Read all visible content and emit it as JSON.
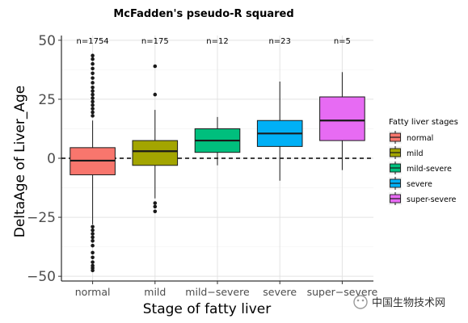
{
  "chart_data": {
    "type": "box",
    "title": "McFadden's pseudo-R squared",
    "xlabel": "Stage of fatty liver",
    "ylabel": "DeltaAge of Liver_Age",
    "ylim": [
      -52,
      52
    ],
    "yticks": [
      -50,
      -25,
      0,
      25,
      50
    ],
    "y_tick_labels": [
      "−50",
      "−25",
      "0",
      "25",
      "50"
    ],
    "reference_line": {
      "y": 0,
      "style": "dashed"
    },
    "grid": true,
    "legend": {
      "title": "Fatty liver stages",
      "placement": "right"
    },
    "categories": [
      "normal",
      "mild",
      "mild−severe",
      "severe",
      "super−severe"
    ],
    "series": [
      {
        "name": "normal",
        "color": "#F8766D",
        "count_label": "n=1754",
        "whisker_low": -28,
        "q1": -7,
        "median": -1,
        "q3": 4.5,
        "whisker_high": 16,
        "outliers": [
          43.5,
          42,
          40,
          38,
          36,
          34,
          32,
          30,
          28.5,
          27,
          25.5,
          24,
          22.5,
          21,
          19.5,
          18,
          -29,
          -30.5,
          -32,
          -33.5,
          -35,
          -37,
          -40,
          -42,
          -44,
          -45.5,
          -46.5,
          -47.5
        ]
      },
      {
        "name": "mild",
        "color": "#A3A500",
        "count_label": "n=175",
        "whisker_low": -17,
        "q1": -3,
        "median": 3,
        "q3": 7.5,
        "whisker_high": 20.5,
        "outliers": [
          39,
          27,
          -19,
          -20.5,
          -22.5
        ]
      },
      {
        "name": "mild-severe",
        "color": "#00BF7D",
        "count_label": "n=12",
        "whisker_low": -3,
        "q1": 2.5,
        "median": 7.5,
        "q3": 12.5,
        "whisker_high": 17.5,
        "outliers": []
      },
      {
        "name": "severe",
        "color": "#00B0F6",
        "count_label": "n=23",
        "whisker_low": -9.5,
        "q1": 5,
        "median": 10.5,
        "q3": 16,
        "whisker_high": 32.5,
        "outliers": []
      },
      {
        "name": "super-severe",
        "color": "#E76BF3",
        "count_label": "n=5",
        "whisker_low": -5,
        "q1": 7.5,
        "median": 16,
        "q3": 26,
        "whisker_high": 36.5,
        "outliers": []
      }
    ]
  },
  "watermark": {
    "text": "中国生物技术网"
  }
}
